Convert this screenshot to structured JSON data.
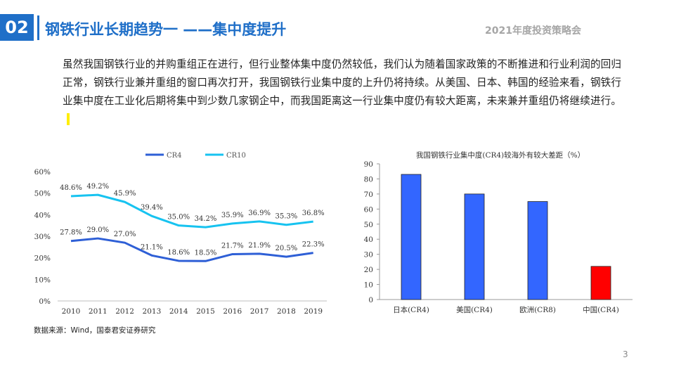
{
  "header": {
    "number": "02",
    "title": "钢铁行业长期趋势一 ——集中度提升",
    "event": "2021年度投资策略会"
  },
  "body": {
    "paragraph": "虽然我国钢铁行业的并购重组正在进行，但行业整体集中度仍然较低，我们认为随着国家政策的不断推进和行业利润的回归正常，钢铁行业兼并重组的窗口再次打开，我国钢铁行业集中度的上升仍将持续。从美国、日本、韩国的经验来看，钢铁行业集中度在工业化后期将集中到少数几家钢企中，而我国距离这一行业集中度仍有较大距离，未来兼并重组仍将继续进行。"
  },
  "source": "数据来源：Wind，国泰君安证券研究",
  "page_number": "3",
  "chart_data": [
    {
      "type": "line",
      "title": "",
      "xlabel": "",
      "ylabel": "",
      "x": [
        "2010",
        "2011",
        "2012",
        "2013",
        "2014",
        "2015",
        "2016",
        "2017",
        "2018",
        "2019"
      ],
      "ylim": [
        0,
        60
      ],
      "yticks": [
        "0%",
        "10%",
        "20%",
        "30%",
        "40%",
        "50%",
        "60%"
      ],
      "legend_position": "top",
      "grid": false,
      "series": [
        {
          "name": "CR4",
          "color": "#2e5fd6",
          "values": [
            27.8,
            29.0,
            27.0,
            21.1,
            18.6,
            18.5,
            21.7,
            21.9,
            20.5,
            22.3
          ],
          "labels": [
            "27.8%",
            "29.0%",
            "27.0%",
            "21.1%",
            "18.6%",
            "18.5%",
            "21.7%",
            "21.9%",
            "20.5%",
            "22.3%"
          ]
        },
        {
          "name": "CR10",
          "color": "#17c3f0",
          "values": [
            48.6,
            49.2,
            45.9,
            39.4,
            35.0,
            34.2,
            35.9,
            36.9,
            35.3,
            36.8
          ],
          "labels": [
            "48.6%",
            "49.2%",
            "45.9%",
            "39.4%",
            "35.0%",
            "34.2%",
            "35.9%",
            "36.9%",
            "35.3%",
            "36.8%"
          ]
        }
      ]
    },
    {
      "type": "bar",
      "title": "我国钢铁行业集中度(CR4)较海外有较大差距（%）",
      "xlabel": "",
      "ylabel": "",
      "categories": [
        "日本(CR4)",
        "美国(CR4)",
        "欧洲(CR8)",
        "中国(CR4)"
      ],
      "values": [
        83,
        70,
        65,
        22
      ],
      "colors": [
        "#3366ff",
        "#3366ff",
        "#3366ff",
        "#ff0000"
      ],
      "ylim": [
        0,
        90
      ],
      "yticks": [
        "0",
        "10",
        "20",
        "30",
        "40",
        "50",
        "60",
        "70",
        "80",
        "90"
      ],
      "grid": false
    }
  ]
}
